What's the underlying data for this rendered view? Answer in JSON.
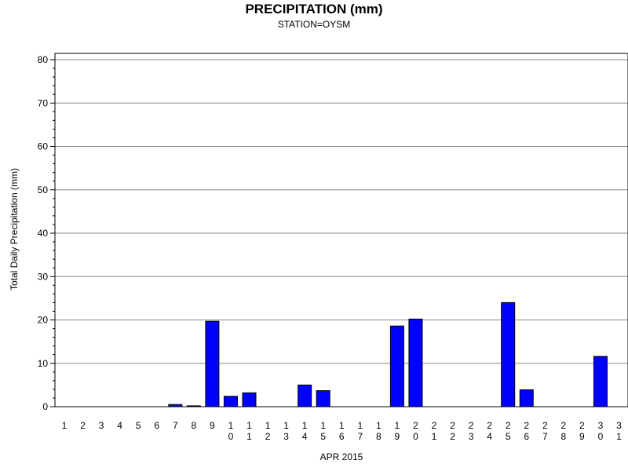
{
  "chart_data": {
    "type": "bar",
    "title": "PRECIPITATION (mm)",
    "subtitle": "STATION=OYSM",
    "xlabel": "APR 2015",
    "ylabel": "Total Daily Precipitation (mm)",
    "ylim": [
      0,
      80
    ],
    "yticks": [
      0,
      10,
      20,
      30,
      40,
      50,
      60,
      70,
      80
    ],
    "grid": true,
    "bar_color": "#0000ff",
    "categories": [
      "1",
      "2",
      "3",
      "4",
      "5",
      "6",
      "7",
      "8",
      "9",
      "10",
      "11",
      "12",
      "13",
      "14",
      "15",
      "16",
      "17",
      "18",
      "19",
      "20",
      "21",
      "22",
      "23",
      "24",
      "25",
      "26",
      "27",
      "28",
      "29",
      "30",
      "31"
    ],
    "values": [
      0,
      0,
      0,
      0,
      0,
      0,
      0.5,
      0.2,
      19.7,
      2.4,
      3.2,
      0,
      0,
      5.0,
      3.7,
      0,
      0,
      0,
      18.6,
      20.2,
      0,
      0,
      0,
      0,
      24.0,
      3.9,
      0,
      0,
      0,
      11.6,
      0
    ]
  }
}
